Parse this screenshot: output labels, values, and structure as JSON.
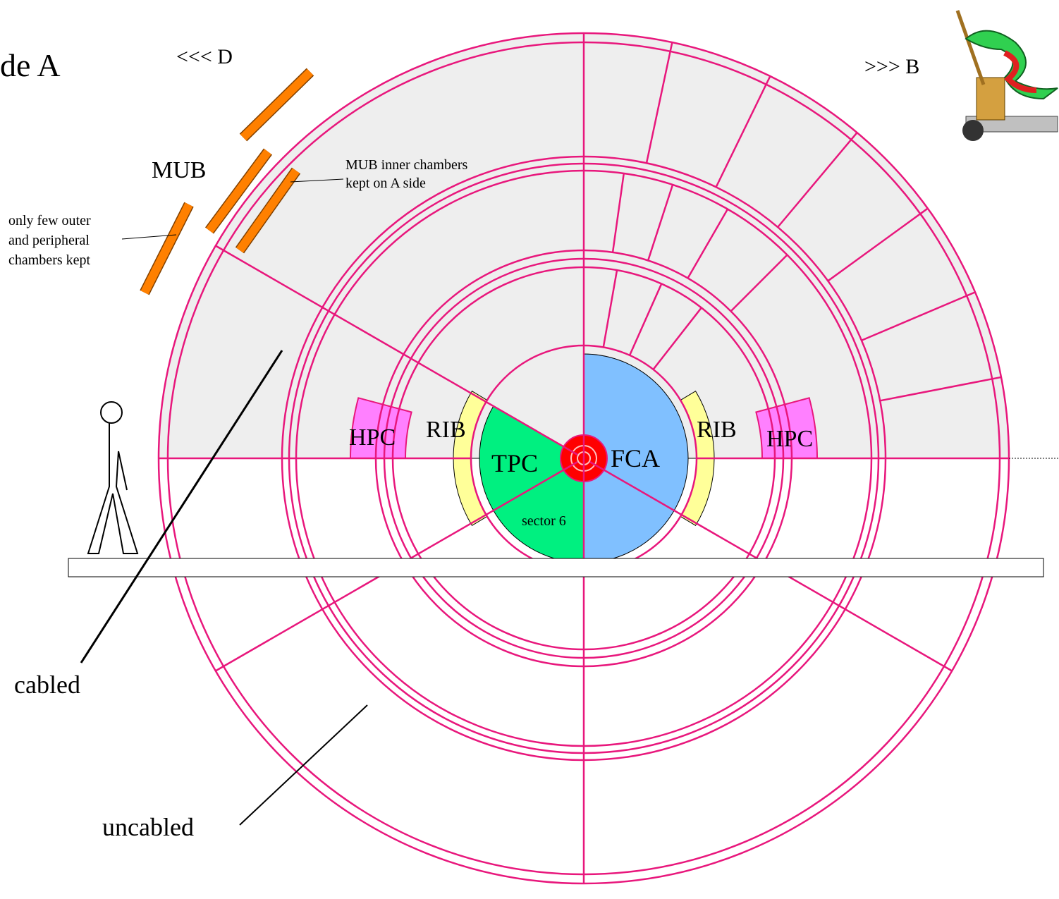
{
  "header": {
    "side": "de A",
    "left_direction": "<<< D",
    "right_direction": ">>> B"
  },
  "labels": {
    "mub": "MUB",
    "hpc_left": "HPC",
    "hpc_right": "HPC",
    "rib_left": "RIB",
    "rib_right": "RIB",
    "tpc": "TPC",
    "fca": "FCA",
    "sector": "sector 6"
  },
  "annotations": {
    "mub_inner": [
      "MUB inner chambers",
      "kept on A side"
    ],
    "outer_chambers": [
      "only few outer",
      "and peripheral",
      "chambers kept"
    ],
    "cabled": "cabled",
    "uncabled": "uncabled"
  }
}
